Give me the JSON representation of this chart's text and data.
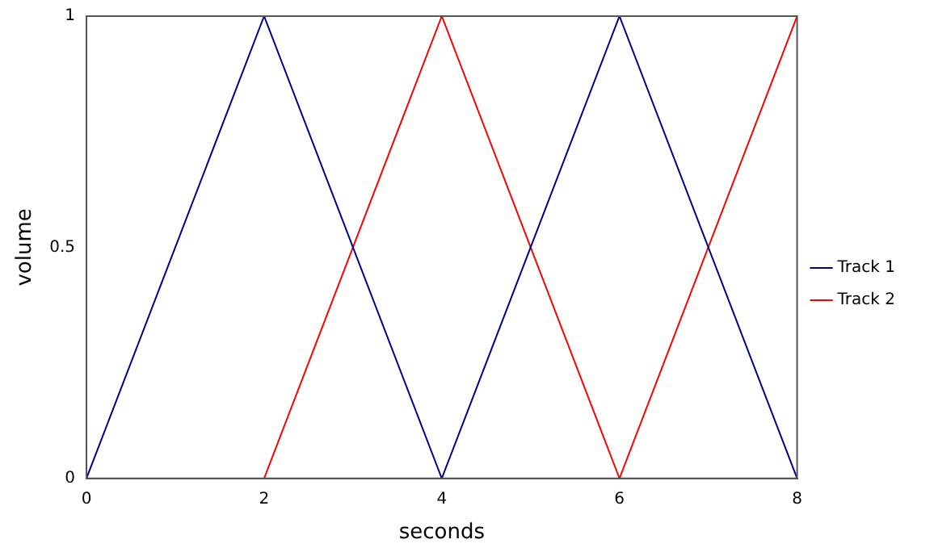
{
  "chart_data": {
    "type": "line",
    "xlabel": "seconds",
    "ylabel": "volume",
    "xlim": [
      0,
      8
    ],
    "xticks": [
      0,
      2,
      4,
      6,
      8
    ],
    "ylim": [
      0,
      1
    ],
    "yticks": [
      0,
      0.5,
      1
    ],
    "grid": false,
    "legend": "right",
    "marker": "none",
    "line_style": "solid",
    "series": [
      {
        "name": "Track 1",
        "color": "#00008b",
        "x": [
          0,
          2,
          4,
          6,
          8
        ],
        "values": [
          0,
          1,
          0,
          1,
          0
        ]
      },
      {
        "name": "Track 2",
        "color": "#ff0000",
        "x": [
          2,
          4,
          6,
          8
        ],
        "values": [
          0,
          1,
          0,
          1
        ]
      }
    ]
  }
}
